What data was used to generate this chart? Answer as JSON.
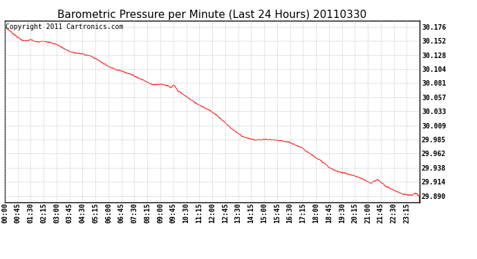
{
  "title": "Barometric Pressure per Minute (Last 24 Hours) 20110330",
  "copyright_text": "Copyright 2011 Cartronics.com",
  "line_color": "#ff0000",
  "background_color": "#ffffff",
  "grid_color": "#bbbbbb",
  "yticks": [
    29.89,
    29.914,
    29.938,
    29.962,
    29.985,
    30.009,
    30.033,
    30.057,
    30.081,
    30.104,
    30.128,
    30.152,
    30.176
  ],
  "ytick_labels": [
    "29.890",
    "29.914",
    "29.938",
    "29.962",
    "29.985",
    "30.009",
    "30.033",
    "30.057",
    "30.081",
    "30.104",
    "30.128",
    "30.152",
    "30.176"
  ],
  "ylim": [
    29.88,
    30.186
  ],
  "xtick_labels": [
    "00:00",
    "00:45",
    "01:30",
    "02:15",
    "03:00",
    "03:45",
    "04:30",
    "05:15",
    "06:00",
    "06:45",
    "07:30",
    "08:15",
    "09:00",
    "09:45",
    "10:30",
    "11:15",
    "12:00",
    "12:45",
    "13:30",
    "14:15",
    "15:00",
    "15:45",
    "16:30",
    "17:15",
    "18:00",
    "18:45",
    "19:30",
    "20:15",
    "21:00",
    "21:45",
    "22:30",
    "23:15"
  ],
  "title_fontsize": 11,
  "copyright_fontsize": 7,
  "tick_fontsize": 7,
  "waypoints": [
    [
      0,
      30.176
    ],
    [
      20,
      30.168
    ],
    [
      45,
      30.158
    ],
    [
      60,
      30.153
    ],
    [
      75,
      30.152
    ],
    [
      90,
      30.154
    ],
    [
      105,
      30.151
    ],
    [
      120,
      30.15
    ],
    [
      135,
      30.152
    ],
    [
      150,
      30.15
    ],
    [
      165,
      30.148
    ],
    [
      180,
      30.146
    ],
    [
      195,
      30.142
    ],
    [
      210,
      30.138
    ],
    [
      225,
      30.134
    ],
    [
      240,
      30.132
    ],
    [
      255,
      30.131
    ],
    [
      270,
      30.13
    ],
    [
      285,
      30.128
    ],
    [
      300,
      30.126
    ],
    [
      315,
      30.122
    ],
    [
      330,
      30.118
    ],
    [
      345,
      30.113
    ],
    [
      360,
      30.109
    ],
    [
      375,
      30.106
    ],
    [
      390,
      30.103
    ],
    [
      405,
      30.101
    ],
    [
      420,
      30.099
    ],
    [
      435,
      30.096
    ],
    [
      450,
      30.093
    ],
    [
      465,
      30.089
    ],
    [
      480,
      30.086
    ],
    [
      495,
      30.082
    ],
    [
      510,
      30.079
    ],
    [
      525,
      30.078
    ],
    [
      540,
      30.079
    ],
    [
      555,
      30.078
    ],
    [
      570,
      30.075
    ],
    [
      575,
      30.073
    ],
    [
      580,
      30.074
    ],
    [
      585,
      30.077
    ],
    [
      590,
      30.076
    ],
    [
      595,
      30.072
    ],
    [
      600,
      30.068
    ],
    [
      615,
      30.063
    ],
    [
      630,
      30.058
    ],
    [
      645,
      30.053
    ],
    [
      660,
      30.048
    ],
    [
      675,
      30.044
    ],
    [
      690,
      30.04
    ],
    [
      705,
      30.036
    ],
    [
      720,
      30.032
    ],
    [
      735,
      30.027
    ],
    [
      750,
      30.02
    ],
    [
      765,
      30.014
    ],
    [
      780,
      30.007
    ],
    [
      795,
      30.001
    ],
    [
      810,
      29.996
    ],
    [
      825,
      29.991
    ],
    [
      840,
      29.988
    ],
    [
      855,
      29.986
    ],
    [
      870,
      29.985
    ],
    [
      885,
      29.985
    ],
    [
      900,
      29.986
    ],
    [
      915,
      29.985
    ],
    [
      930,
      29.985
    ],
    [
      945,
      29.984
    ],
    [
      960,
      29.983
    ],
    [
      975,
      29.982
    ],
    [
      990,
      29.98
    ],
    [
      1005,
      29.977
    ],
    [
      1020,
      29.974
    ],
    [
      1035,
      29.97
    ],
    [
      1050,
      29.965
    ],
    [
      1065,
      29.96
    ],
    [
      1080,
      29.955
    ],
    [
      1095,
      29.95
    ],
    [
      1110,
      29.945
    ],
    [
      1120,
      29.941
    ],
    [
      1125,
      29.938
    ],
    [
      1135,
      29.936
    ],
    [
      1140,
      29.934
    ],
    [
      1155,
      29.932
    ],
    [
      1170,
      29.93
    ],
    [
      1185,
      29.928
    ],
    [
      1200,
      29.926
    ],
    [
      1215,
      29.924
    ],
    [
      1230,
      29.921
    ],
    [
      1245,
      29.918
    ],
    [
      1260,
      29.914
    ],
    [
      1270,
      29.912
    ],
    [
      1275,
      29.913
    ],
    [
      1285,
      29.916
    ],
    [
      1290,
      29.918
    ],
    [
      1300,
      29.916
    ],
    [
      1305,
      29.913
    ],
    [
      1315,
      29.91
    ],
    [
      1320,
      29.907
    ],
    [
      1330,
      29.905
    ],
    [
      1340,
      29.902
    ],
    [
      1350,
      29.9
    ],
    [
      1360,
      29.898
    ],
    [
      1370,
      29.896
    ],
    [
      1380,
      29.894
    ],
    [
      1390,
      29.893
    ],
    [
      1400,
      29.892
    ],
    [
      1410,
      29.891
    ],
    [
      1420,
      29.893
    ],
    [
      1425,
      29.895
    ],
    [
      1430,
      29.893
    ],
    [
      1435,
      29.891
    ],
    [
      1440,
      29.89
    ]
  ]
}
